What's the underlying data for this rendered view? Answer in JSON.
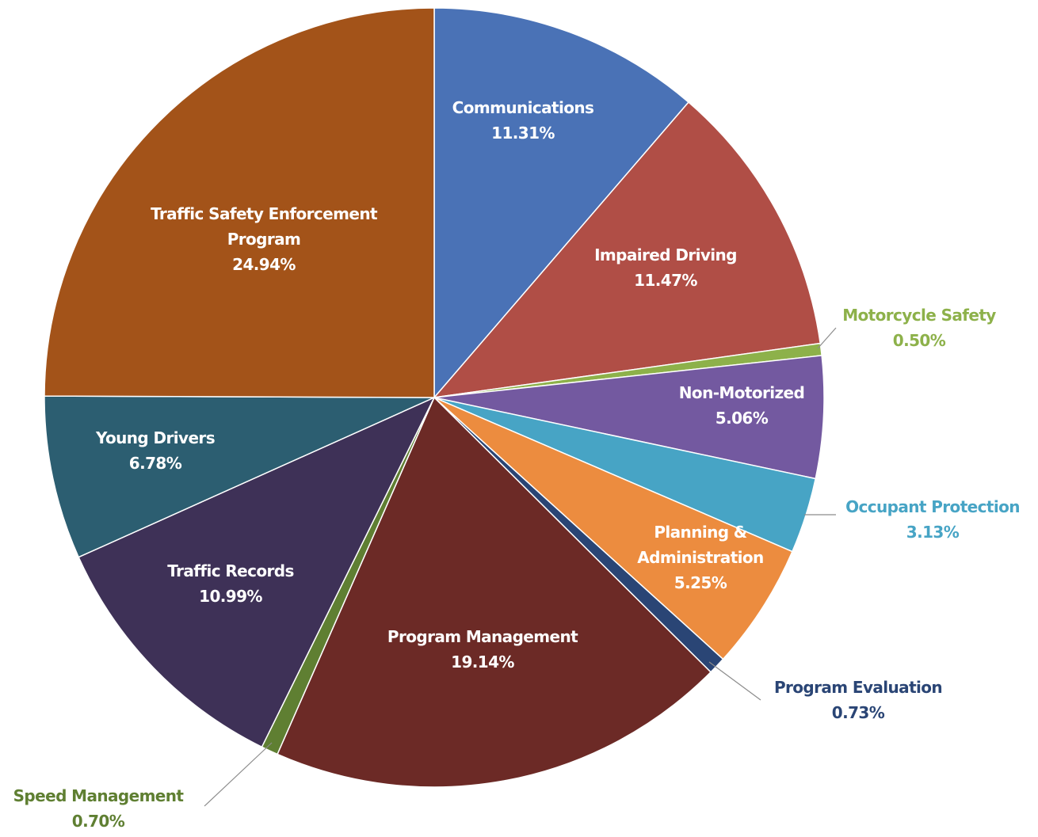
{
  "chart_data": {
    "type": "pie",
    "title": "",
    "start_angle_deg": 0,
    "direction": "clockwise",
    "slices": [
      {
        "name": "Communications",
        "label_lines": [
          "Communications"
        ],
        "value_label": "11.31%",
        "value": 11.31,
        "color": "#4a72b6",
        "label_color": "#ffffff",
        "label_position": "inside"
      },
      {
        "name": "Impaired Driving",
        "label_lines": [
          "Impaired Driving"
        ],
        "value_label": "11.47%",
        "value": 11.47,
        "color": "#b04e46",
        "label_color": "#ffffff",
        "label_position": "inside"
      },
      {
        "name": "Motorcycle Safety",
        "label_lines": [
          "Motorcycle Safety"
        ],
        "value_label": "0.50%",
        "value": 0.5,
        "color": "#8db14a",
        "label_color": "#8db14a",
        "label_position": "outside-right"
      },
      {
        "name": "Non-Motorized",
        "label_lines": [
          "Non-Motorized"
        ],
        "value_label": "5.06%",
        "value": 5.06,
        "color": "#7359a0",
        "label_color": "#ffffff",
        "label_position": "inside"
      },
      {
        "name": "Occupant Protection",
        "label_lines": [
          "Occupant Protection"
        ],
        "value_label": "3.13%",
        "value": 3.13,
        "color": "#47a4c5",
        "label_color": "#47a4c5",
        "label_position": "outside-right"
      },
      {
        "name": "Planning & Administration",
        "label_lines": [
          "Planning &",
          "Administration"
        ],
        "value_label": "5.25%",
        "value": 5.25,
        "color": "#ec8c3f",
        "label_color": "#ffffff",
        "label_position": "inside"
      },
      {
        "name": "Program Evaluation",
        "label_lines": [
          "Program Evaluation"
        ],
        "value_label": "0.73%",
        "value": 0.73,
        "color": "#2a4575",
        "label_color": "#2a4575",
        "label_position": "outside-right"
      },
      {
        "name": "Program Management",
        "label_lines": [
          "Program Management"
        ],
        "value_label": "19.14%",
        "value": 19.14,
        "color": "#6c2a26",
        "label_color": "#ffffff",
        "label_position": "inside"
      },
      {
        "name": "Speed Management",
        "label_lines": [
          "Speed Management"
        ],
        "value_label": "0.70%",
        "value": 0.7,
        "color": "#5f7f32",
        "label_color": "#5f7f32",
        "label_position": "outside-left"
      },
      {
        "name": "Traffic Records",
        "label_lines": [
          "Traffic Records"
        ],
        "value_label": "10.99%",
        "value": 10.99,
        "color": "#3e3157",
        "label_color": "#ffffff",
        "label_position": "inside"
      },
      {
        "name": "Young Drivers",
        "label_lines": [
          "Young Drivers"
        ],
        "value_label": "6.78%",
        "value": 6.78,
        "color": "#2c5e71",
        "label_color": "#ffffff",
        "label_position": "inside"
      },
      {
        "name": "Traffic Safety Enforcement Program",
        "label_lines": [
          "Traffic Safety Enforcement",
          "Program"
        ],
        "value_label": "24.94%",
        "value": 24.94,
        "color": "#a35319",
        "label_color": "#ffffff",
        "label_position": "inside"
      }
    ]
  }
}
